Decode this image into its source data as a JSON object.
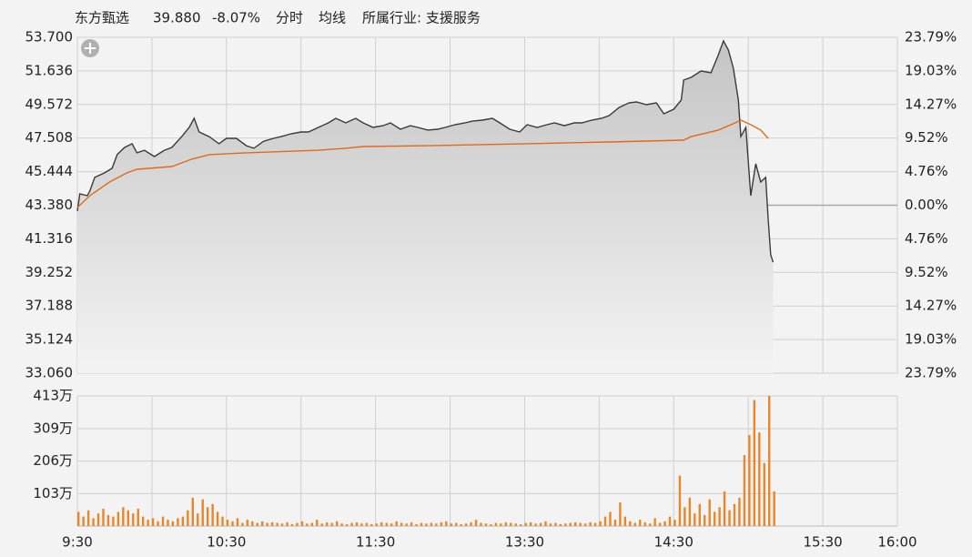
{
  "chart_data": [
    {
      "type": "line",
      "mode_label": "分时",
      "industry_label": "所属行业: 支援服务",
      "quote": {
        "price": {
          "value": 39.88,
          "label": "39.880"
        },
        "change": {
          "value": -8.07,
          "label": "-8.07%"
        }
      },
      "up_color": "#d9262c",
      "down_color": "#1f9a3c",
      "flat_color": "#333333",
      "series": [
        {
          "name": "东方甄选",
          "color": "#3a3a3a",
          "x": [
            0,
            1,
            4,
            5,
            7,
            11,
            14,
            16,
            19,
            22,
            24,
            27,
            31,
            35,
            38,
            42,
            45,
            47,
            49,
            53,
            57,
            60,
            64,
            68,
            71,
            75,
            79,
            82,
            86,
            90,
            93,
            97,
            101,
            104,
            108,
            112,
            115,
            119,
            123,
            126,
            130,
            134,
            137,
            141,
            145,
            148,
            152,
            156,
            159,
            163,
            167,
            170,
            174,
            178,
            181,
            185,
            189,
            192,
            196,
            200,
            203,
            207,
            211,
            214,
            218,
            222,
            225,
            229,
            233,
            236,
            240,
            243,
            244,
            247,
            251,
            255,
            258,
            260,
            262,
            264,
            266,
            267,
            269,
            271,
            273,
            275,
            277,
            278,
            279,
            280
          ],
          "values": [
            43.02,
            44.08,
            43.97,
            44.25,
            45.09,
            45.37,
            45.65,
            46.49,
            46.93,
            47.16,
            46.6,
            46.76,
            46.37,
            46.76,
            46.93,
            47.6,
            48.16,
            48.72,
            47.88,
            47.6,
            47.16,
            47.49,
            47.49,
            47.04,
            46.88,
            47.32,
            47.49,
            47.6,
            47.77,
            47.88,
            47.88,
            48.16,
            48.44,
            48.72,
            48.44,
            48.72,
            48.44,
            48.16,
            48.27,
            48.44,
            48.05,
            48.27,
            48.16,
            48.0,
            48.05,
            48.16,
            48.33,
            48.44,
            48.55,
            48.61,
            48.72,
            48.44,
            48.05,
            47.88,
            48.33,
            48.16,
            48.33,
            48.44,
            48.27,
            48.44,
            48.44,
            48.61,
            48.72,
            48.89,
            49.39,
            49.67,
            49.73,
            49.56,
            49.67,
            49.0,
            49.28,
            49.84,
            51.07,
            51.24,
            51.63,
            51.52,
            52.64,
            53.48,
            52.92,
            51.8,
            49.84,
            47.6,
            48.16,
            43.97,
            45.93,
            44.81,
            45.09,
            42.57,
            40.33,
            39.88
          ]
        },
        {
          "name": "均线",
          "color": "#e06a1a",
          "x": [
            0,
            5,
            13,
            20,
            24,
            38,
            46,
            53,
            68,
            97,
            108,
            115,
            141,
            181,
            214,
            244,
            247,
            258,
            264,
            267,
            271,
            275,
            278
          ],
          "values": [
            43.24,
            43.97,
            44.81,
            45.37,
            45.59,
            45.76,
            46.21,
            46.49,
            46.6,
            46.76,
            46.88,
            46.99,
            47.04,
            47.16,
            47.27,
            47.38,
            47.6,
            48.0,
            48.39,
            48.61,
            48.33,
            48.0,
            47.49
          ]
        }
      ],
      "ylim": [
        33.06,
        53.7
      ],
      "yticks": [
        {
          "value": 53.7,
          "label": "53.700"
        },
        {
          "value": 51.636,
          "label": "51.636"
        },
        {
          "value": 49.572,
          "label": "49.572"
        },
        {
          "value": 47.508,
          "label": "47.508"
        },
        {
          "value": 45.444,
          "label": "45.444"
        },
        {
          "value": 43.38,
          "label": "43.380"
        },
        {
          "value": 41.316,
          "label": "41.316"
        },
        {
          "value": 39.252,
          "label": "39.252"
        },
        {
          "value": 37.188,
          "label": "37.188"
        },
        {
          "value": 35.124,
          "label": "35.124"
        },
        {
          "value": 33.06,
          "label": "33.060"
        }
      ],
      "y2lim": [
        -23.79,
        23.79
      ],
      "y2ticks": [
        {
          "value": 23.79,
          "label": "23.79%"
        },
        {
          "value": 19.03,
          "label": "19.03%"
        },
        {
          "value": 14.27,
          "label": "14.27%"
        },
        {
          "value": 9.52,
          "label": "9.52%"
        },
        {
          "value": 4.76,
          "label": "4.76%"
        },
        {
          "value": 0,
          "label": "0.00%"
        },
        {
          "value": -4.76,
          "label": "4.76%"
        },
        {
          "value": -9.52,
          "label": "9.52%"
        },
        {
          "value": -14.27,
          "label": "14.27%"
        },
        {
          "value": -19.03,
          "label": "19.03%"
        },
        {
          "value": -23.79,
          "label": "23.79%"
        }
      ],
      "grid": true
    },
    {
      "type": "bar",
      "color": "#e8862a",
      "x": [
        0,
        2,
        4,
        6,
        8,
        10,
        12,
        14,
        16,
        18,
        20,
        22,
        24,
        26,
        28,
        30,
        32,
        34,
        36,
        38,
        40,
        42,
        44,
        46,
        48,
        50,
        52,
        54,
        56,
        58,
        60,
        62,
        64,
        66,
        68,
        70,
        72,
        74,
        76,
        78,
        80,
        82,
        84,
        86,
        88,
        90,
        92,
        94,
        96,
        98,
        100,
        102,
        104,
        106,
        108,
        110,
        112,
        114,
        116,
        118,
        120,
        122,
        124,
        126,
        128,
        130,
        132,
        134,
        136,
        138,
        140,
        142,
        144,
        146,
        148,
        150,
        152,
        154,
        156,
        158,
        160,
        162,
        164,
        166,
        168,
        170,
        172,
        174,
        176,
        178,
        180,
        182,
        184,
        186,
        188,
        190,
        192,
        194,
        196,
        198,
        200,
        202,
        204,
        206,
        208,
        210,
        212,
        214,
        216,
        218,
        220,
        222,
        224,
        226,
        228,
        230,
        232,
        234,
        236,
        238,
        240,
        242,
        244,
        246,
        248,
        250,
        252,
        254,
        256,
        258,
        260,
        262,
        264,
        266,
        268,
        270,
        272,
        274,
        276,
        278,
        280
      ],
      "values": [
        45,
        30,
        50,
        25,
        40,
        55,
        35,
        30,
        45,
        60,
        50,
        40,
        55,
        30,
        20,
        25,
        15,
        30,
        20,
        15,
        25,
        30,
        50,
        90,
        40,
        85,
        60,
        70,
        45,
        30,
        20,
        15,
        25,
        10,
        20,
        15,
        10,
        15,
        10,
        12,
        10,
        8,
        12,
        6,
        10,
        15,
        8,
        10,
        20,
        8,
        12,
        10,
        15,
        8,
        6,
        10,
        12,
        8,
        10,
        6,
        8,
        12,
        10,
        8,
        15,
        10,
        8,
        12,
        6,
        10,
        8,
        10,
        8,
        12,
        15,
        8,
        10,
        6,
        8,
        12,
        20,
        10,
        8,
        6,
        10,
        8,
        12,
        10,
        8,
        6,
        10,
        12,
        8,
        10,
        15,
        8,
        10,
        6,
        8,
        10,
        12,
        10,
        8,
        12,
        10,
        15,
        30,
        45,
        20,
        75,
        30,
        15,
        10,
        20,
        12,
        8,
        25,
        10,
        15,
        30,
        20,
        160,
        60,
        90,
        40,
        70,
        35,
        85,
        45,
        60,
        110,
        50,
        70,
        90,
        225,
        289,
        400,
        297,
        200,
        413,
        110
      ],
      "xlim": [
        0,
        330
      ],
      "xticks": [
        {
          "value": 0,
          "label": "9:30"
        },
        {
          "value": 30,
          "label": null
        },
        {
          "value": 60,
          "label": "10:30"
        },
        {
          "value": 90,
          "label": null
        },
        {
          "value": 120,
          "label": "11:30"
        },
        {
          "value": 150,
          "label": null
        },
        {
          "value": 180,
          "label": "13:30"
        },
        {
          "value": 210,
          "label": null
        },
        {
          "value": 240,
          "label": "14:30"
        },
        {
          "value": 270,
          "label": null
        },
        {
          "value": 300,
          "label": "15:30"
        },
        {
          "value": 330,
          "label": "16:00"
        }
      ],
      "ylim": [
        0,
        413
      ],
      "yticks": [
        {
          "value": 103,
          "label": "103万"
        },
        {
          "value": 206,
          "label": "206万"
        },
        {
          "value": 309,
          "label": "309万"
        },
        {
          "value": 413,
          "label": "413万"
        }
      ]
    }
  ]
}
